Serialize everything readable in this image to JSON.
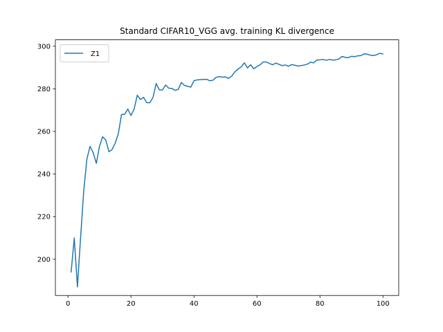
{
  "chart_data": {
    "type": "line",
    "title": "Standard CIFAR10_VGG avg. training KL divergence",
    "xlabel": "",
    "ylabel": "",
    "xlim": [
      -4,
      105
    ],
    "ylim": [
      183,
      303
    ],
    "x_ticks": [
      0,
      20,
      40,
      60,
      80,
      100
    ],
    "y_ticks": [
      200,
      220,
      240,
      260,
      280,
      300
    ],
    "grid": false,
    "legend_position": "top-left",
    "series": [
      {
        "name": "Z1",
        "color": "#1f77b4",
        "x": [
          1,
          2,
          3,
          4,
          5,
          6,
          7,
          8,
          9,
          10,
          11,
          12,
          13,
          14,
          15,
          16,
          17,
          18,
          19,
          20,
          21,
          22,
          23,
          24,
          25,
          26,
          27,
          28,
          29,
          30,
          31,
          32,
          33,
          34,
          35,
          36,
          37,
          38,
          39,
          40,
          41,
          42,
          43,
          44,
          45,
          46,
          47,
          48,
          49,
          50,
          51,
          52,
          53,
          54,
          55,
          56,
          57,
          58,
          59,
          60,
          61,
          62,
          63,
          64,
          65,
          66,
          67,
          68,
          69,
          70,
          71,
          72,
          73,
          74,
          75,
          76,
          77,
          78,
          79,
          80,
          81,
          82,
          83,
          84,
          85,
          86,
          87,
          88,
          89,
          90,
          91,
          92,
          93,
          94,
          95,
          96,
          97,
          98,
          99,
          100
        ],
        "y": [
          194,
          210,
          187,
          210,
          232,
          247,
          253,
          250,
          245,
          253,
          257.5,
          256,
          250.5,
          251.5,
          254.5,
          259,
          268,
          268,
          270.5,
          267.5,
          270.5,
          277,
          275,
          276,
          273.5,
          273.5,
          276,
          282.5,
          279.5,
          279.5,
          281.8,
          280.3,
          280.2,
          279.3,
          279.7,
          283,
          281.6,
          281.2,
          280.8,
          283.8,
          284.2,
          284.3,
          284.4,
          284.5,
          283.8,
          284,
          285.4,
          285.7,
          285.5,
          285.6,
          284.9,
          286,
          288,
          289.3,
          290.3,
          292.2,
          289.8,
          291.3,
          289.4,
          290.5,
          291.3,
          292.6,
          292.6,
          291.9,
          291.3,
          292.1,
          291.5,
          290.9,
          291.2,
          290.6,
          291.4,
          291.1,
          290.7,
          290.9,
          291.2,
          291.6,
          292.5,
          292.2,
          293.5,
          293.6,
          293.8,
          293.4,
          293.8,
          293.5,
          293.6,
          294,
          295.2,
          294.8,
          294.6,
          295.3,
          295.1,
          295.5,
          295.6,
          296.4,
          296.3,
          295.8,
          295.6,
          296,
          296.7,
          296.4
        ]
      }
    ]
  }
}
